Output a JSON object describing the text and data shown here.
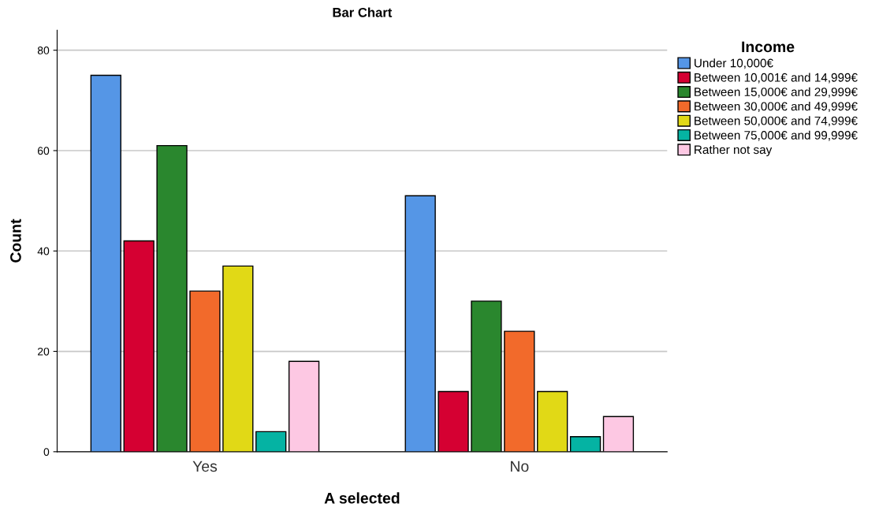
{
  "chart_data": {
    "type": "bar",
    "title": "Bar Chart",
    "xlabel": "A selected",
    "ylabel": "Count",
    "legend_title": "Income",
    "categories": [
      "Yes",
      "No"
    ],
    "series": [
      {
        "name": "Under 10,000€",
        "color": "#5596e6",
        "values": [
          75,
          51
        ]
      },
      {
        "name": "Between 10,001€ and 14,999€",
        "color": "#d50032",
        "values": [
          42,
          12
        ]
      },
      {
        "name": "Between 15,000€ and 29,999€",
        "color": "#2a872e",
        "values": [
          61,
          30
        ]
      },
      {
        "name": "Between 30,000€ and 49,999€",
        "color": "#f26a2b",
        "values": [
          32,
          24
        ]
      },
      {
        "name": "Between 50,000€ and 74,999€",
        "color": "#e1d916",
        "values": [
          37,
          12
        ]
      },
      {
        "name": "Between 75,000€ and 99,999€",
        "color": "#05b3a3",
        "values": [
          4,
          3
        ]
      },
      {
        "name": "Rather not say",
        "color": "#fdc8e3",
        "values": [
          18,
          7
        ]
      }
    ],
    "ylim": [
      0,
      84
    ],
    "yticks": [
      0,
      20,
      40,
      60,
      80
    ],
    "grid": "y",
    "legend": "top right"
  }
}
